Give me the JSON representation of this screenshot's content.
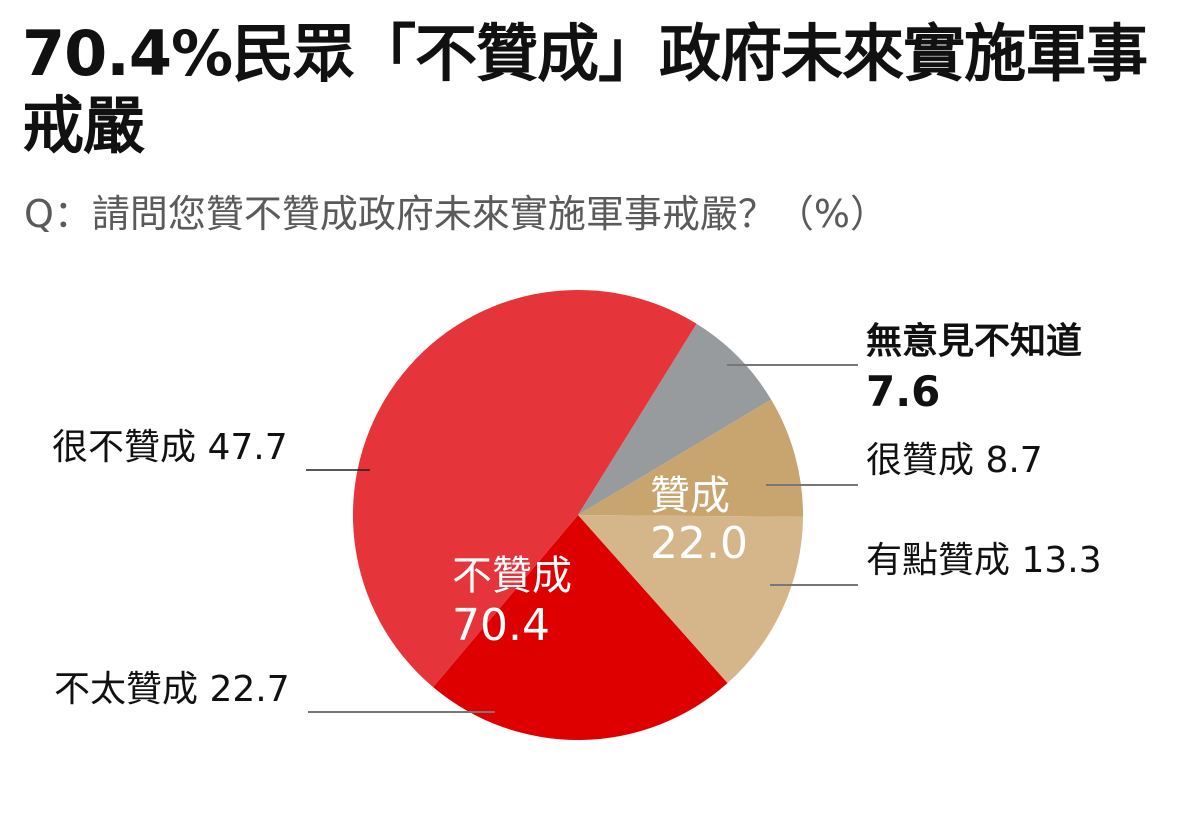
{
  "header": {
    "title": "70.4%民眾「不贊成」政府未來實施軍事戒嚴",
    "subtitle": "Q：請問您贊不贊成政府未來實施軍事戒嚴？（%）"
  },
  "labels": {
    "very_disagree": "很不贊成 47.7",
    "somewhat_disagree": "不太贊成 22.7",
    "no_opinion_name": "無意見不知道",
    "no_opinion_value": "7.6",
    "strongly_agree": "很贊成 8.7",
    "somewhat_agree": "有點贊成 13.3",
    "disagree_total_name": "不贊成",
    "disagree_total_value": "70.4",
    "agree_total_name": "贊成",
    "agree_total_value": "22.0"
  },
  "colors": {
    "very_disagree": "#e5343a",
    "somewhat_disagree": "#de0000",
    "no_opinion": "#989b9e",
    "strongly_agree": "#c8a46e",
    "somewhat_agree": "#d4b68a",
    "leader_line": "#666666"
  },
  "chart_data": {
    "type": "pie",
    "title": "70.4%民眾「不贊成」政府未來實施軍事戒嚴",
    "subtitle": "Q：請問您贊不贊成政府未來實施軍事戒嚴？（%）",
    "unit": "%",
    "categories": [
      "無意見不知道",
      "很贊成",
      "有點贊成",
      "不太贊成",
      "很不贊成"
    ],
    "values": [
      7.6,
      8.7,
      13.3,
      22.7,
      47.7
    ],
    "groups": [
      {
        "name": "贊成",
        "total": 22.0,
        "members": [
          "很贊成",
          "有點贊成"
        ]
      },
      {
        "name": "不贊成",
        "total": 70.4,
        "members": [
          "很不贊成",
          "不太贊成"
        ]
      },
      {
        "name": "無意見不知道",
        "total": 7.6,
        "members": [
          "無意見不知道"
        ]
      }
    ],
    "start_angle_deg": 31.8,
    "direction": "clockwise",
    "legend": "none (direct labels with leader lines)"
  }
}
